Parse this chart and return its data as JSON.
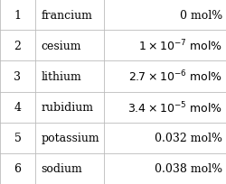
{
  "rows": [
    {
      "rank": "1",
      "element": "francium",
      "value_plain": "0 mol%",
      "coeff": "",
      "exp": ""
    },
    {
      "rank": "2",
      "element": "cesium",
      "value_plain": "",
      "coeff": "1",
      "exp": "-7"
    },
    {
      "rank": "3",
      "element": "lithium",
      "value_plain": "",
      "coeff": "2.7",
      "exp": "-6"
    },
    {
      "rank": "4",
      "element": "rubidium",
      "value_plain": "",
      "coeff": "3.4",
      "exp": "-5"
    },
    {
      "rank": "5",
      "element": "potassium",
      "value_plain": "0.032 mol%",
      "coeff": "",
      "exp": ""
    },
    {
      "rank": "6",
      "element": "sodium",
      "value_plain": "0.038 mol%",
      "coeff": "",
      "exp": ""
    }
  ],
  "bg_color": "#ffffff",
  "line_color": "#bbbbbb",
  "text_color": "#000000",
  "font_size": 9.0,
  "vcols": [
    0.0,
    0.155,
    0.46,
    1.0
  ],
  "figsize": [
    2.51,
    2.05
  ],
  "dpi": 100
}
